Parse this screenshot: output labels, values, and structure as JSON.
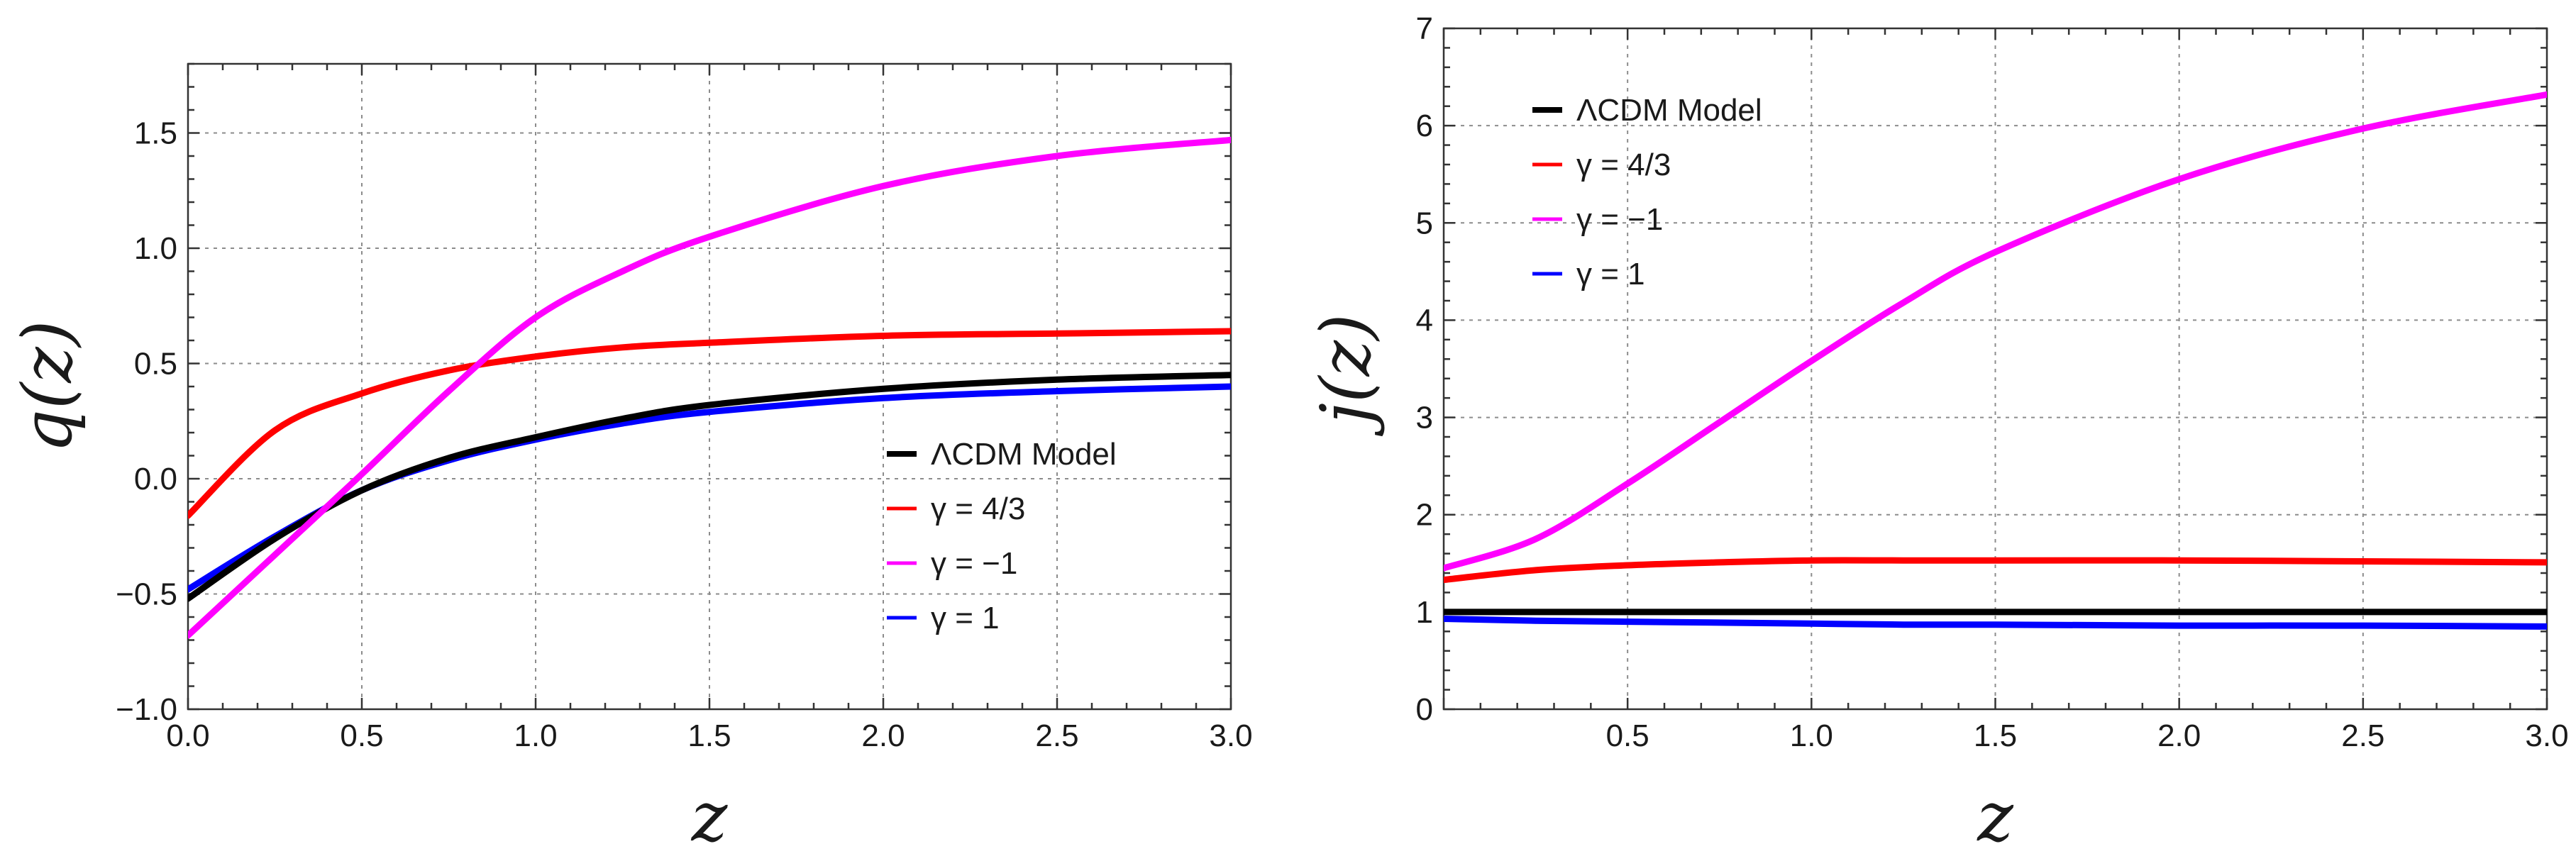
{
  "colors": {
    "lcdm": "#000000",
    "gamma_4_3": "#ff0000",
    "gamma_m1": "#ff00ff",
    "gamma_1": "#0000ff"
  },
  "chart_data": [
    {
      "type": "line",
      "id": "q",
      "xlabel": "z",
      "ylabel": "q(z)",
      "xlim": [
        0,
        3
      ],
      "ylim": [
        -1,
        1.8
      ],
      "xticks": [
        "0.0",
        "0.5",
        "1.0",
        "1.5",
        "2.0",
        "2.5",
        "3.0"
      ],
      "yticks": [
        "−1.0",
        "−0.5",
        "0.0",
        "0.5",
        "1.0",
        "1.5"
      ],
      "xtick_values": [
        0,
        0.5,
        1,
        1.5,
        2,
        2.5,
        3
      ],
      "ytick_values": [
        -1,
        -0.5,
        0,
        0.5,
        1,
        1.5
      ],
      "legend": {
        "placement": "lower-right",
        "entries": [
          "ΛCDM Model",
          "γ = 4/3",
          "γ = −1",
          "γ = 1"
        ]
      },
      "x": [
        0,
        0.25,
        0.5,
        0.75,
        1.0,
        1.25,
        1.5,
        2.0,
        2.5,
        3.0
      ],
      "series": [
        {
          "name": "ΛCDM Model",
          "color": "#000000",
          "values": [
            -0.52,
            -0.26,
            -0.05,
            0.09,
            0.18,
            0.26,
            0.32,
            0.39,
            0.43,
            0.45
          ]
        },
        {
          "name": "γ = 4/3",
          "color": "#ff0000",
          "values": [
            -0.16,
            0.21,
            0.37,
            0.47,
            0.53,
            0.57,
            0.59,
            0.62,
            0.63,
            0.64
          ]
        },
        {
          "name": "γ = −1",
          "color": "#ff00ff",
          "values": [
            -0.68,
            -0.33,
            0.02,
            0.38,
            0.7,
            0.9,
            1.05,
            1.27,
            1.4,
            1.47
          ]
        },
        {
          "name": "γ = 1",
          "color": "#0000ff",
          "values": [
            -0.48,
            -0.25,
            -0.05,
            0.08,
            0.17,
            0.24,
            0.29,
            0.35,
            0.38,
            0.4
          ]
        }
      ]
    },
    {
      "type": "line",
      "id": "j",
      "xlabel": "z",
      "ylabel": "j(z)",
      "xlim": [
        0,
        3
      ],
      "ylim": [
        0,
        7
      ],
      "xticks": [
        "0.5",
        "1.0",
        "1.5",
        "2.0",
        "2.5",
        "3.0"
      ],
      "yticks": [
        "0",
        "1",
        "2",
        "3",
        "4",
        "5",
        "6",
        "7"
      ],
      "xtick_values": [
        0.5,
        1,
        1.5,
        2,
        2.5,
        3
      ],
      "ytick_values": [
        0,
        1,
        2,
        3,
        4,
        5,
        6,
        7
      ],
      "legend": {
        "placement": "top-left",
        "entries": [
          "ΛCDM Model",
          "γ = 4/3",
          "γ = −1",
          "γ = 1"
        ]
      },
      "x": [
        0,
        0.25,
        0.5,
        0.75,
        1.0,
        1.25,
        1.5,
        2.0,
        2.5,
        3.0
      ],
      "series": [
        {
          "name": "ΛCDM Model",
          "color": "#000000",
          "values": [
            1,
            1,
            1,
            1,
            1,
            1,
            1,
            1,
            1,
            1
          ]
        },
        {
          "name": "γ = 4/3",
          "color": "#ff0000",
          "values": [
            1.33,
            1.43,
            1.48,
            1.51,
            1.53,
            1.53,
            1.53,
            1.53,
            1.52,
            1.51
          ]
        },
        {
          "name": "γ = −1",
          "color": "#ff00ff",
          "values": [
            1.45,
            1.75,
            2.32,
            2.95,
            3.58,
            4.18,
            4.7,
            5.45,
            5.97,
            6.32
          ]
        },
        {
          "name": "γ = 1",
          "color": "#0000ff",
          "values": [
            0.93,
            0.91,
            0.9,
            0.89,
            0.88,
            0.87,
            0.87,
            0.86,
            0.86,
            0.85
          ]
        }
      ]
    }
  ]
}
